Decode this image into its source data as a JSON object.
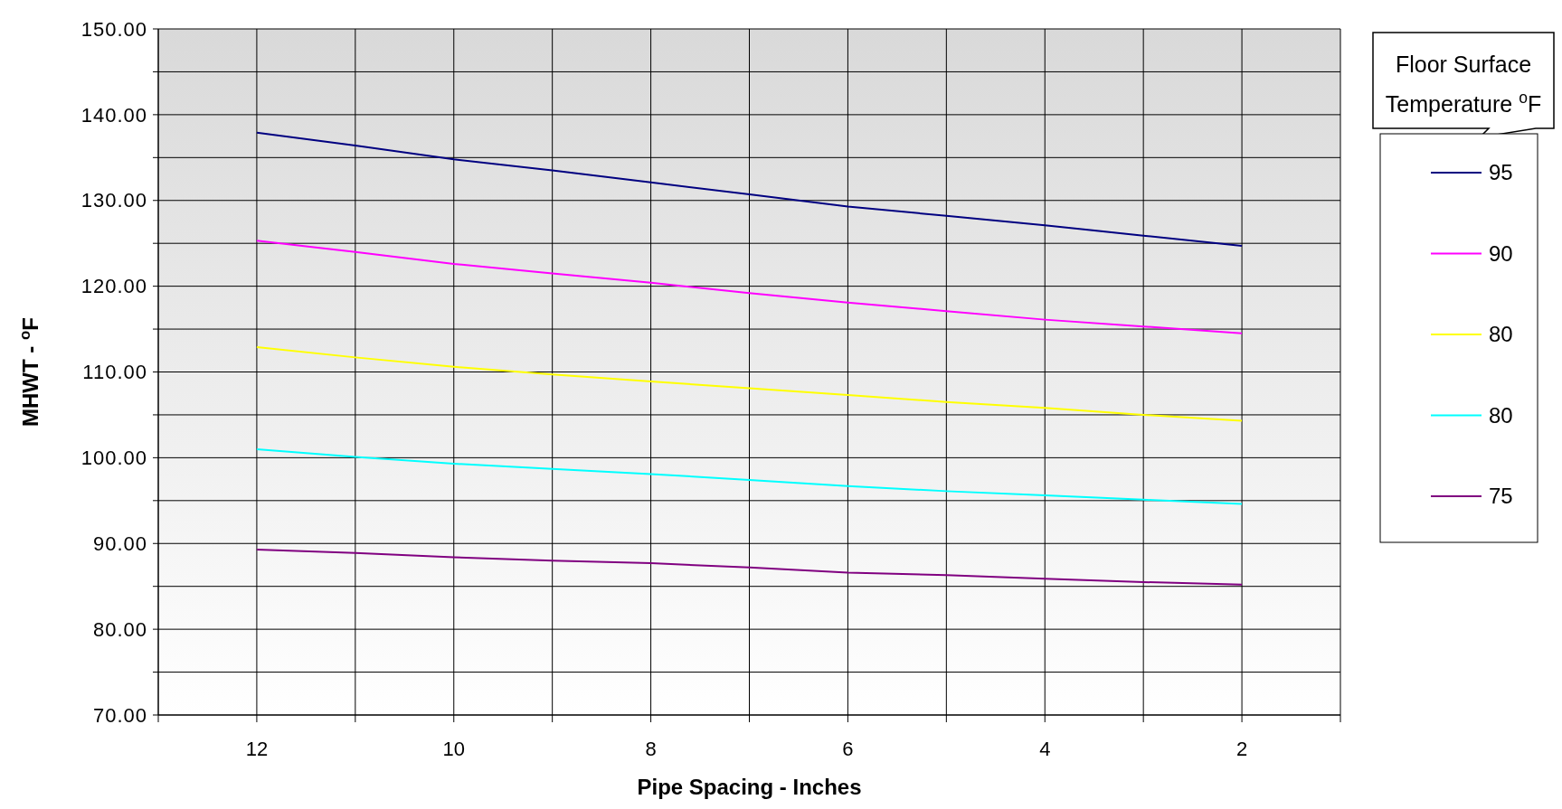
{
  "chart_data": {
    "type": "line",
    "xlabel": "Pipe Spacing - Inches",
    "ylabel": "MHWT - $^{o}$F",
    "legend_title": "Floor Surface Temperature $^{o}$F",
    "x": [
      12,
      11,
      10,
      9,
      8,
      7,
      6,
      5,
      4,
      3,
      2
    ],
    "xlim": [
      13,
      1
    ],
    "xticks": [
      {
        "value": 13,
        "label": null
      },
      12,
      {
        "value": 11,
        "label": null
      },
      10,
      {
        "value": 9,
        "label": null
      },
      8,
      {
        "value": 7,
        "label": null
      },
      6,
      {
        "value": 5,
        "label": null
      },
      4,
      {
        "value": 3,
        "label": null
      },
      2,
      {
        "value": 1,
        "label": null
      }
    ],
    "ylim": [
      70,
      150
    ],
    "yticks": [
      {
        "value": 70,
        "label": "70.00"
      },
      {
        "value": 75,
        "label": null
      },
      {
        "value": 80,
        "label": "80.00"
      },
      {
        "value": 85,
        "label": null
      },
      {
        "value": 90,
        "label": "90.00"
      },
      {
        "value": 95,
        "label": null
      },
      {
        "value": 100,
        "label": "100.00"
      },
      {
        "value": 105,
        "label": null
      },
      {
        "value": 110,
        "label": "110.00"
      },
      {
        "value": 115,
        "label": null
      },
      {
        "value": 120,
        "label": "120.00"
      },
      {
        "value": 125,
        "label": null
      },
      {
        "value": 130,
        "label": "130.00"
      },
      {
        "value": 135,
        "label": null
      },
      {
        "value": 140,
        "label": "140.00"
      },
      {
        "value": 145,
        "label": null
      },
      {
        "value": 150,
        "label": "150.00"
      }
    ],
    "grid": true,
    "legend": "right",
    "marker": "none",
    "line_style": "solid",
    "series": [
      {
        "name": "95",
        "color": "#000080",
        "values": [
          137.9,
          136.4,
          134.8,
          133.5,
          132.1,
          130.7,
          129.3,
          128.2,
          127.1,
          125.9,
          124.7
        ]
      },
      {
        "name": "90",
        "color": "#ff00ff",
        "values": [
          125.3,
          124.0,
          122.6,
          121.5,
          120.4,
          119.2,
          118.1,
          117.1,
          116.1,
          115.3,
          114.5
        ]
      },
      {
        "name": "80",
        "color": "#ffff00",
        "values": [
          112.9,
          111.7,
          110.6,
          109.7,
          108.9,
          108.1,
          107.3,
          106.5,
          105.8,
          105.0,
          104.3
        ]
      },
      {
        "name": "80",
        "color": "#00ffff",
        "values": [
          101.0,
          100.1,
          99.3,
          98.7,
          98.1,
          97.4,
          96.7,
          96.1,
          95.6,
          95.1,
          94.6
        ]
      },
      {
        "name": "75",
        "color": "#800080",
        "values": [
          89.3,
          88.9,
          88.4,
          88.0,
          87.7,
          87.2,
          86.6,
          86.3,
          85.9,
          85.5,
          85.2
        ]
      }
    ]
  }
}
